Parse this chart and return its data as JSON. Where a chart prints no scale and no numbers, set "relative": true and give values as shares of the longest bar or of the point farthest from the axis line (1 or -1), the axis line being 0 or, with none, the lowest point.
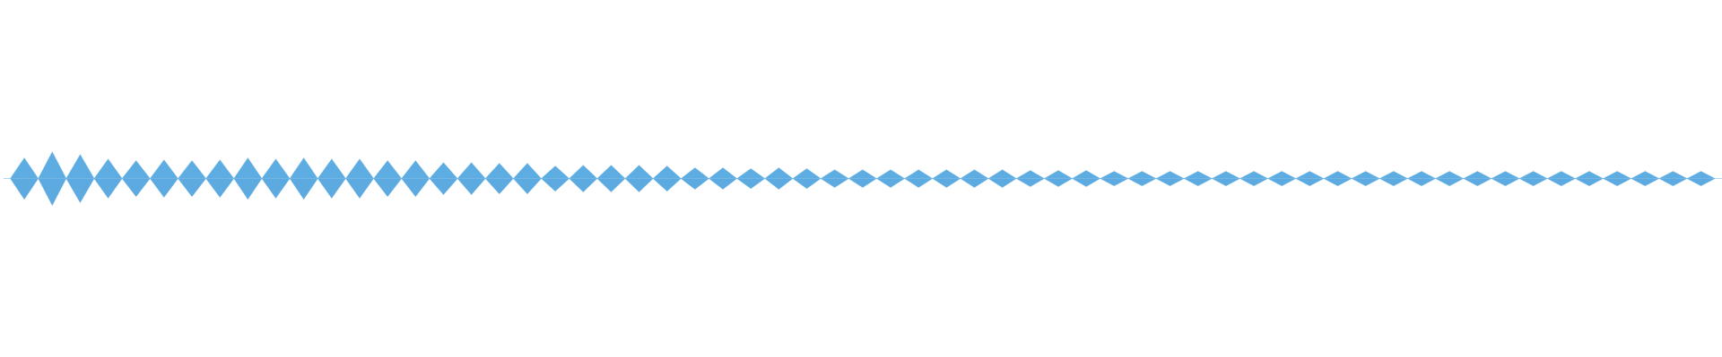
{
  "chart_data": {
    "type": "area",
    "relative": true,
    "categories": [
      null,
      null,
      null,
      null,
      null,
      null,
      null,
      null,
      null,
      null,
      null,
      null,
      null,
      null,
      null,
      null,
      null,
      null,
      null,
      null,
      null,
      null,
      null,
      null,
      null,
      null,
      null,
      null,
      null,
      null,
      null,
      null,
      null,
      null,
      null,
      null,
      null,
      null,
      null,
      null,
      null,
      null,
      null,
      null,
      null,
      null,
      null,
      null,
      null,
      null,
      null,
      null,
      null,
      null,
      null,
      null,
      null,
      null,
      null,
      null,
      null,
      null,
      null,
      null,
      null,
      null,
      null,
      null,
      null,
      null,
      null,
      null,
      null,
      null,
      null,
      null,
      null,
      null,
      null,
      null,
      null,
      null,
      null,
      null,
      null,
      null,
      null,
      null,
      null,
      null,
      null,
      null,
      null,
      null,
      null,
      null,
      null,
      null,
      null,
      null,
      null,
      null,
      null,
      null,
      null,
      null,
      null,
      null,
      null,
      null,
      null,
      null,
      null,
      null,
      null,
      null,
      null,
      null,
      null,
      null,
      null,
      null,
      null
    ],
    "series": [
      {
        "color": "#5dade2",
        "values": [
          0,
          0.77,
          0,
          1,
          0,
          0.9,
          0,
          0.73,
          0,
          0.67,
          0,
          0.7,
          0,
          0.67,
          0,
          0.7,
          0,
          0.77,
          0,
          0.73,
          0,
          0.77,
          0,
          0.73,
          0,
          0.73,
          0,
          0.67,
          0,
          0.67,
          0,
          0.6,
          0,
          0.6,
          0,
          0.57,
          0,
          0.57,
          0,
          0.47,
          0,
          0.5,
          0,
          0.5,
          0,
          0.5,
          0,
          0.47,
          0,
          0.4,
          0,
          0.4,
          0,
          0.37,
          0,
          0.4,
          0,
          0.37,
          0,
          0.33,
          0,
          0.33,
          0,
          0.33,
          0,
          0.33,
          0,
          0.33,
          0,
          0.33,
          0,
          0.33,
          0,
          0.3,
          0,
          0.3,
          0,
          0.3,
          0,
          0.27,
          0,
          0.27,
          0,
          0.27,
          0,
          0.27,
          0,
          0.27,
          0,
          0.27,
          0,
          0.27,
          0,
          0.27,
          0,
          0.27,
          0,
          0.27,
          0,
          0.27,
          0,
          0.27,
          0,
          0.27,
          0,
          0.27,
          0,
          0.27,
          0,
          0.27,
          0,
          0.27,
          0,
          0.27,
          0,
          0.27,
          0,
          0.27,
          0,
          0.27,
          0,
          0.27,
          0
        ]
      },
      {
        "color": "#5caae0",
        "values": [
          0,
          -0.77,
          0,
          -1,
          0,
          -0.9,
          0,
          -0.73,
          0,
          -0.67,
          0,
          -0.7,
          0,
          -0.67,
          0,
          -0.7,
          0,
          -0.77,
          0,
          -0.73,
          0,
          -0.77,
          0,
          -0.73,
          0,
          -0.73,
          0,
          -0.67,
          0,
          -0.67,
          0,
          -0.6,
          0,
          -0.6,
          0,
          -0.57,
          0,
          -0.57,
          0,
          -0.47,
          0,
          -0.5,
          0,
          -0.5,
          0,
          -0.5,
          0,
          -0.47,
          0,
          -0.4,
          0,
          -0.4,
          0,
          -0.37,
          0,
          -0.4,
          0,
          -0.37,
          0,
          -0.33,
          0,
          -0.33,
          0,
          -0.33,
          0,
          -0.33,
          0,
          -0.33,
          0,
          -0.33,
          0,
          -0.33,
          0,
          -0.3,
          0,
          -0.3,
          0,
          -0.3,
          0,
          -0.27,
          0,
          -0.27,
          0,
          -0.27,
          0,
          -0.27,
          0,
          -0.27,
          0,
          -0.27,
          0,
          -0.27,
          0,
          -0.27,
          0,
          -0.27,
          0,
          -0.27,
          0,
          -0.27,
          0,
          -0.27,
          0,
          -0.27,
          0,
          -0.27,
          0,
          -0.27,
          0,
          -0.27,
          0,
          -0.27,
          0,
          -0.27,
          0,
          -0.27,
          0,
          -0.27,
          0,
          -0.27,
          0,
          -0.27,
          0
        ]
      }
    ]
  }
}
